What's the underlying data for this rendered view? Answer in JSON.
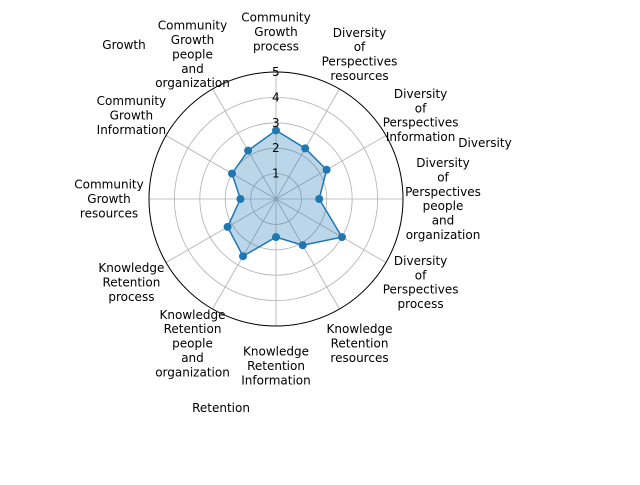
{
  "chart_data": {
    "type": "radar",
    "title": "",
    "categories": [
      "Community\nGrowth\nprocess",
      "Diversity\nof\nPerspectives\nresources",
      "Diversity\nof\nPerspectives\nInformation",
      "Diversity\nof\nPerspectives\npeople\nand\norganization",
      "Diversity\nof\nPerspectives\nprocess",
      "Knowledge\nRetention\nresources",
      "Knowledge\nRetention\nInformation",
      "Knowledge\nRetention\npeople\nand\norganization",
      "Knowledge\nRetention\nprocess",
      "Community\nGrowth\nresources",
      "Community\nGrowth\nInformation",
      "Community\nGrowth\npeople\nand\norganization"
    ],
    "series": [
      {
        "values": [
          2.7,
          2.3,
          2.3,
          1.7,
          3.0,
          2.1,
          1.5,
          2.6,
          2.2,
          1.4,
          2.0,
          2.2
        ]
      }
    ],
    "radial_ticks": [
      "1",
      "2",
      "3",
      "4",
      "5"
    ],
    "rmax": 5,
    "group_labels": [
      "Growth",
      "Diversity",
      "Retention"
    ],
    "grid": true,
    "colors": {
      "line": "#1f77b4",
      "fill": "#1f77b4",
      "grid": "#b0b0b0",
      "frame": "#000000"
    }
  }
}
